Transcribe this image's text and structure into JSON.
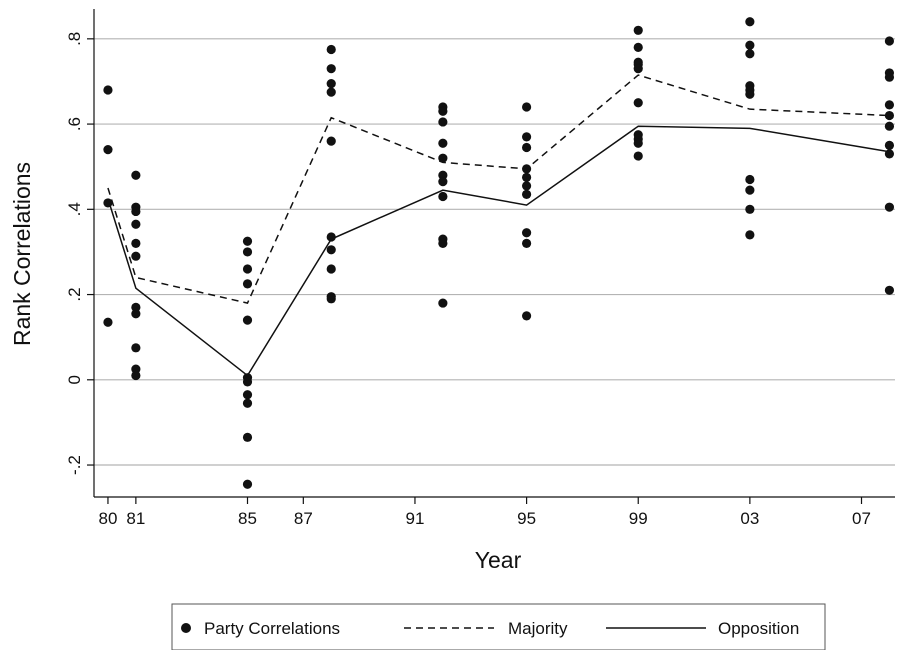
{
  "chart_data": {
    "type": "scatter",
    "xlabel": "Year",
    "ylabel": "Rank Correlations",
    "x_ticks": [
      {
        "value": 1980,
        "label": "80"
      },
      {
        "value": 1981,
        "label": "81"
      },
      {
        "value": 1985,
        "label": "85"
      },
      {
        "value": 1987,
        "label": "87"
      },
      {
        "value": 1991,
        "label": "91"
      },
      {
        "value": 1995,
        "label": "95"
      },
      {
        "value": 1999,
        "label": "99"
      },
      {
        "value": 2003,
        "label": "03"
      },
      {
        "value": 2007,
        "label": "07"
      }
    ],
    "y_ticks": [
      {
        "value": -0.2,
        "label": "-.2"
      },
      {
        "value": 0,
        "label": "0"
      },
      {
        "value": 0.2,
        "label": ".2"
      },
      {
        "value": 0.4,
        "label": ".4"
      },
      {
        "value": 0.6,
        "label": ".6"
      },
      {
        "value": 0.8,
        "label": ".8"
      }
    ],
    "xlim": [
      1979.5,
      2008.2
    ],
    "ylim": [
      -0.275,
      0.87
    ],
    "grid": {
      "horizontal": true,
      "vertical": false
    },
    "legend_position": "bottom",
    "series": [
      {
        "name": "Party Correlations",
        "kind": "points",
        "color": "#111111",
        "points": [
          [
            1980,
            0.68
          ],
          [
            1980,
            0.54
          ],
          [
            1980,
            0.415
          ],
          [
            1980,
            0.135
          ],
          [
            1981,
            0.48
          ],
          [
            1981,
            0.405
          ],
          [
            1981,
            0.395
          ],
          [
            1981,
            0.365
          ],
          [
            1981,
            0.32
          ],
          [
            1981,
            0.29
          ],
          [
            1981,
            0.17
          ],
          [
            1981,
            0.155
          ],
          [
            1981,
            0.075
          ],
          [
            1981,
            0.025
          ],
          [
            1981,
            0.01
          ],
          [
            1985,
            0.325
          ],
          [
            1985,
            0.3
          ],
          [
            1985,
            0.26
          ],
          [
            1985,
            0.225
          ],
          [
            1985,
            0.14
          ],
          [
            1985,
            0.005
          ],
          [
            1985,
            -0.005
          ],
          [
            1985,
            -0.035
          ],
          [
            1985,
            -0.055
          ],
          [
            1985,
            -0.135
          ],
          [
            1985,
            -0.245
          ],
          [
            1988,
            0.775
          ],
          [
            1988,
            0.73
          ],
          [
            1988,
            0.695
          ],
          [
            1988,
            0.675
          ],
          [
            1988,
            0.56
          ],
          [
            1988,
            0.335
          ],
          [
            1988,
            0.305
          ],
          [
            1988,
            0.26
          ],
          [
            1988,
            0.195
          ],
          [
            1988,
            0.19
          ],
          [
            1992,
            0.64
          ],
          [
            1992,
            0.63
          ],
          [
            1992,
            0.605
          ],
          [
            1992,
            0.555
          ],
          [
            1992,
            0.52
          ],
          [
            1992,
            0.48
          ],
          [
            1992,
            0.465
          ],
          [
            1992,
            0.43
          ],
          [
            1992,
            0.33
          ],
          [
            1992,
            0.32
          ],
          [
            1992,
            0.18
          ],
          [
            1995,
            0.64
          ],
          [
            1995,
            0.57
          ],
          [
            1995,
            0.545
          ],
          [
            1995,
            0.495
          ],
          [
            1995,
            0.475
          ],
          [
            1995,
            0.455
          ],
          [
            1995,
            0.435
          ],
          [
            1995,
            0.345
          ],
          [
            1995,
            0.32
          ],
          [
            1995,
            0.15
          ],
          [
            1999,
            0.82
          ],
          [
            1999,
            0.78
          ],
          [
            1999,
            0.745
          ],
          [
            1999,
            0.74
          ],
          [
            1999,
            0.73
          ],
          [
            1999,
            0.65
          ],
          [
            1999,
            0.575
          ],
          [
            1999,
            0.565
          ],
          [
            1999,
            0.555
          ],
          [
            1999,
            0.525
          ],
          [
            2003,
            0.84
          ],
          [
            2003,
            0.785
          ],
          [
            2003,
            0.765
          ],
          [
            2003,
            0.69
          ],
          [
            2003,
            0.68
          ],
          [
            2003,
            0.67
          ],
          [
            2003,
            0.47
          ],
          [
            2003,
            0.445
          ],
          [
            2003,
            0.4
          ],
          [
            2003,
            0.34
          ],
          [
            2008,
            0.795
          ],
          [
            2008,
            0.72
          ],
          [
            2008,
            0.71
          ],
          [
            2008,
            0.645
          ],
          [
            2008,
            0.62
          ],
          [
            2008,
            0.595
          ],
          [
            2008,
            0.55
          ],
          [
            2008,
            0.53
          ],
          [
            2008,
            0.405
          ],
          [
            2008,
            0.21
          ]
        ]
      },
      {
        "name": "Majority",
        "kind": "line",
        "dash": "dashed",
        "color": "#111111",
        "x": [
          1980,
          1981,
          1985,
          1988,
          1992,
          1995,
          1999,
          2003,
          2008
        ],
        "values": [
          0.45,
          0.24,
          0.18,
          0.615,
          0.51,
          0.495,
          0.715,
          0.635,
          0.62
        ]
      },
      {
        "name": "Opposition",
        "kind": "line",
        "dash": "solid",
        "color": "#111111",
        "x": [
          1980,
          1981,
          1985,
          1988,
          1992,
          1995,
          1999,
          2003,
          2008
        ],
        "values": [
          0.425,
          0.215,
          0.01,
          0.33,
          0.445,
          0.41,
          0.595,
          0.59,
          0.535
        ]
      }
    ]
  }
}
